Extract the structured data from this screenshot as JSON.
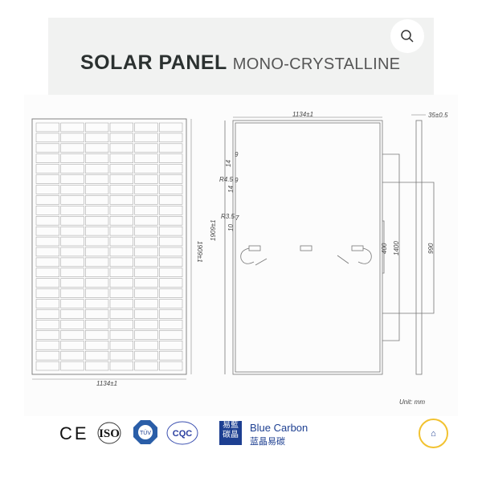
{
  "header": {
    "title_bold": "SOLAR PANEL",
    "title_light": "MONO-CRYSTALLINE",
    "search_icon": "magnifier-icon"
  },
  "drawing": {
    "front_width": "1134±1",
    "front_height": "1909±1",
    "back_width": "1134±1",
    "back_height": "1909±1",
    "thickness": "35±0.5",
    "hole_dims": [
      "14",
      "9",
      "R4.5",
      "9",
      "14",
      "R3.5",
      "7",
      "10"
    ],
    "mount_400": "400",
    "mount_1400": "1400",
    "mount_990": "990",
    "unit": "Unit: mm"
  },
  "certifications": {
    "ce": "CE",
    "iso": "ISO",
    "tuv": "TÜV",
    "cqc": "CQC",
    "brand_logo_text": "易藍碳晶",
    "brand_name": "Blue Carbon",
    "brand_name_cn": "蓝晶易碳",
    "badge_icon": "globe-seal-icon"
  },
  "colors": {
    "brand_blue": "#1d3f91",
    "badge_gold": "#f2c230",
    "line": "#777777"
  }
}
